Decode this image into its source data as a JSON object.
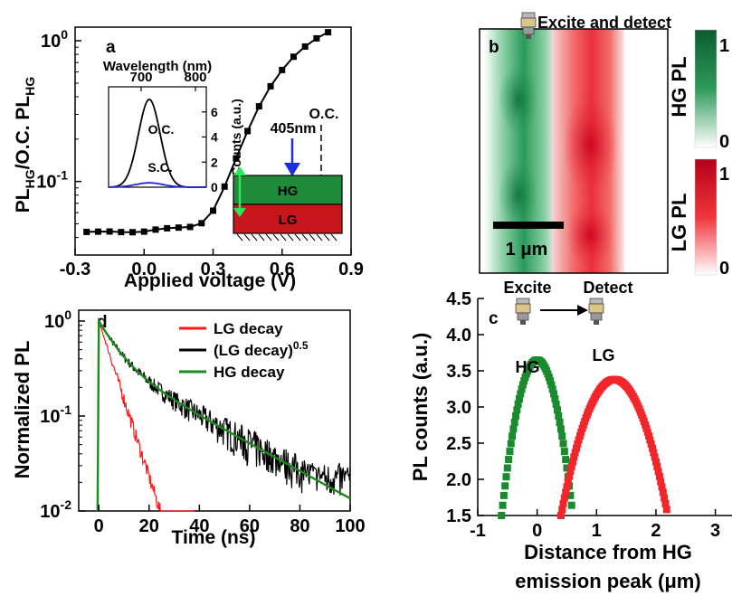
{
  "chart_data": [
    {
      "panel_id": "a",
      "type": "line",
      "panel_label": "a",
      "xlabel": "Applied voltage (V)",
      "ylabel_parts": [
        "PL",
        "HG",
        "/O.C. PL",
        "HG"
      ],
      "yscale": "log",
      "xlim": [
        -0.3,
        0.9
      ],
      "ylim": [
        0.03,
        1.25
      ],
      "xticks": [
        "-0.3",
        "0.0",
        "0.3",
        "0.6",
        "0.9"
      ],
      "yticks": [
        {
          "base": "10",
          "exp": "0"
        },
        {
          "base": "10",
          "exp": "-1"
        }
      ],
      "series": [
        {
          "x": [
            -0.25,
            -0.2,
            -0.15,
            -0.1,
            -0.05,
            0.0,
            0.05,
            0.1,
            0.15,
            0.2,
            0.25,
            0.3,
            0.35,
            0.4,
            0.45,
            0.5,
            0.55,
            0.6,
            0.65,
            0.7,
            0.75,
            0.8
          ],
          "y": [
            0.0438,
            0.044,
            0.0441,
            0.0437,
            0.0436,
            0.044,
            0.0455,
            0.0465,
            0.047,
            0.0475,
            0.0505,
            0.062,
            0.092,
            0.146,
            0.228,
            0.342,
            0.475,
            0.62,
            0.77,
            0.91,
            1.04,
            1.15
          ]
        }
      ],
      "annotations": {
        "oc_label": "O.C.",
        "oc_x": 0.77,
        "arrow_label": "405nm",
        "layer_top": "HG",
        "layer_bottom": "LG"
      },
      "inset": {
        "xlabel": "Wavelength (nm)",
        "ylabel": "Counts (a.u.)",
        "xlim": [
          640,
          820
        ],
        "ylim": [
          0,
          8
        ],
        "xticks": [
          "700",
          "800"
        ],
        "yticks": [
          "0",
          "2",
          "4",
          "6"
        ],
        "curves": [
          {
            "name": "O.C.",
            "color": "#000000",
            "peak_nm": 715,
            "peak": 7.0,
            "sigma_nm": 20
          },
          {
            "name": "S.C.",
            "color": "#1f2bdb",
            "peak_nm": 715,
            "peak": 0.35,
            "sigma_nm": 25
          }
        ]
      }
    },
    {
      "panel_id": "b",
      "type": "heatmap",
      "panel_label": "b",
      "top_text": "Excite and detect",
      "scalebar_label": "1 μm",
      "colorbars": [
        {
          "label": "HG PL",
          "max": "1",
          "min": "0",
          "color": "#0d7a3e"
        },
        {
          "label": "LG PL",
          "max": "1",
          "min": "0",
          "color": "#e0202a"
        }
      ]
    },
    {
      "panel_id": "c",
      "type": "scatter",
      "panel_label": "c",
      "xlabel_lines": [
        "Distance from HG",
        "emission peak (μm)"
      ],
      "ylabel": "PL counts (a.u.)",
      "xlim": [
        -1,
        3.6
      ],
      "ylim": [
        1.5,
        4.5
      ],
      "xticks": [
        "-1",
        "0",
        "1",
        "2",
        "3"
      ],
      "yticks": [
        "1.5",
        "2.0",
        "2.5",
        "3.0",
        "3.5",
        "4.0",
        "4.5"
      ],
      "excite_label": "Excite",
      "detect_label": "Detect",
      "series": [
        {
          "name": "HG",
          "color": "#1a8a2e",
          "peak_x": 0.0,
          "peak_y": 3.65,
          "half_width": 0.6,
          "floor": 1.5
        },
        {
          "name": "LG",
          "color": "#f0262a",
          "peak_x": 1.3,
          "peak_y": 3.38,
          "half_width": 0.9,
          "floor": 1.5
        }
      ]
    },
    {
      "panel_id": "d",
      "type": "line",
      "panel_label": "d",
      "xlabel": "Time (ns)",
      "ylabel": "Normalized PL",
      "yscale": "log",
      "xlim": [
        -8,
        100
      ],
      "ylim": [
        0.01,
        1.3
      ],
      "xticks": [
        "0",
        "20",
        "40",
        "60",
        "80",
        "100"
      ],
      "yticks": [
        {
          "base": "10",
          "exp": "0"
        },
        {
          "base": "10",
          "exp": "-1"
        },
        {
          "base": "10",
          "exp": "-2"
        }
      ],
      "legend_position": "top-right",
      "series": [
        {
          "name": "LG decay",
          "color": "#ff1a1a",
          "tau1": 5.3,
          "tau2": 5.3,
          "a": 1.0,
          "noise_floor": 0.0
        },
        {
          "name_parts": [
            "(LG decay)",
            "0.5"
          ],
          "color": "#000000",
          "tau1": 7.0,
          "tau2": 30.0,
          "a": 0.62,
          "noise_floor": 0.021
        },
        {
          "name": "HG decay",
          "color": "#1c8a1c",
          "tau1": 7.0,
          "tau2": 30.0,
          "a": 0.62,
          "noise_floor": 0.0
        }
      ]
    }
  ]
}
